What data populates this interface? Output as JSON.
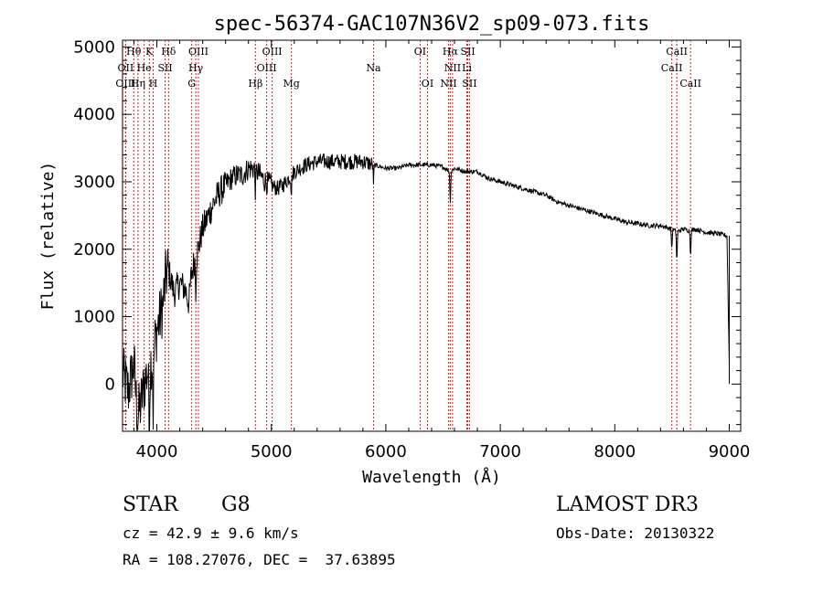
{
  "chart_data": {
    "type": "line",
    "title": "spec-56374-GAC107N36V2_sp09-073.fits",
    "xlabel": "Wavelength (Å)",
    "ylabel": "Flux (relative)",
    "xlim": [
      3700,
      9100
    ],
    "ylim": [
      -700,
      5100
    ],
    "xticks": [
      4000,
      5000,
      6000,
      7000,
      8000,
      9000
    ],
    "yticks": [
      0,
      1000,
      2000,
      3000,
      4000,
      5000
    ],
    "xtick_labels": [
      "4000",
      "5000",
      "6000",
      "7000",
      "8000",
      "9000"
    ],
    "ytick_labels": [
      "0",
      "1000",
      "2000",
      "3000",
      "4000",
      "5000"
    ],
    "grid": false,
    "series": [
      {
        "name": "flux",
        "x": [
          3700,
          3750,
          3800,
          3830,
          3860,
          3890,
          3920,
          3960,
          4000,
          4050,
          4080,
          4100,
          4150,
          4200,
          4250,
          4280,
          4300,
          4330,
          4360,
          4400,
          4450,
          4500,
          4550,
          4600,
          4650,
          4700,
          4750,
          4800,
          4850,
          4900,
          4950,
          5000,
          5050,
          5100,
          5200,
          5300,
          5400,
          5500,
          5600,
          5700,
          5800,
          5900,
          6000,
          6100,
          6200,
          6300,
          6400,
          6500,
          6563,
          6600,
          6700,
          6800,
          6900,
          7000,
          7100,
          7200,
          7300,
          7400,
          7500,
          7600,
          7700,
          7800,
          7900,
          8000,
          8100,
          8200,
          8300,
          8400,
          8498,
          8542,
          8600,
          8662,
          8700,
          8800,
          8900,
          8980,
          9000
        ],
        "y": [
          150,
          -100,
          300,
          -500,
          -300,
          0,
          200,
          400,
          800,
          1150,
          1600,
          1700,
          1350,
          1500,
          1400,
          1200,
          1600,
          1850,
          2000,
          2300,
          2500,
          2700,
          2850,
          2950,
          3050,
          3100,
          3100,
          3200,
          3200,
          3100,
          3000,
          2950,
          2900,
          2950,
          3150,
          3250,
          3300,
          3300,
          3300,
          3300,
          3300,
          3250,
          3200,
          3200,
          3250,
          3250,
          3250,
          3220,
          3150,
          3200,
          3150,
          3150,
          3050,
          3000,
          2950,
          2900,
          2850,
          2800,
          2700,
          2650,
          2600,
          2550,
          2500,
          2450,
          2400,
          2380,
          2350,
          2350,
          2300,
          2260,
          2300,
          2270,
          2300,
          2250,
          2230,
          2200,
          300
        ]
      }
    ],
    "lines": [
      {
        "name": "Hθ",
        "x": 3798,
        "row": 1,
        "tier": "top"
      },
      {
        "name": "K",
        "x": 3934,
        "row": 1,
        "tier": "top"
      },
      {
        "name": "Hδ",
        "x": 4102,
        "row": 1,
        "tier": "top"
      },
      {
        "name": "OIII",
        "x": 4363,
        "row": 1,
        "tier": "top"
      },
      {
        "name": "OIII",
        "x": 5007,
        "row": 1,
        "tier": "top"
      },
      {
        "name": "OI",
        "x": 6300,
        "row": 1,
        "tier": "top"
      },
      {
        "name": "Hα",
        "x": 6563,
        "row": 1,
        "tier": "top"
      },
      {
        "name": "SII",
        "x": 6716,
        "row": 1,
        "tier": "top"
      },
      {
        "name": "CaII",
        "x": 8542,
        "row": 1,
        "tier": "top"
      },
      {
        "name": "OII",
        "x": 3727,
        "row": 2,
        "tier": "top"
      },
      {
        "name": "He",
        "x": 3889,
        "row": 2,
        "tier": "top"
      },
      {
        "name": "SII",
        "x": 4072,
        "row": 2,
        "tier": "top"
      },
      {
        "name": "Hγ",
        "x": 4340,
        "row": 2,
        "tier": "top"
      },
      {
        "name": "OIII",
        "x": 4959,
        "row": 2,
        "tier": "top"
      },
      {
        "name": "Na",
        "x": 5893,
        "row": 2,
        "tier": "top"
      },
      {
        "name": "NII",
        "x": 6583,
        "row": 2,
        "tier": "top"
      },
      {
        "name": "Li",
        "x": 6708,
        "row": 2,
        "tier": "top"
      },
      {
        "name": "CaII",
        "x": 8498,
        "row": 2,
        "tier": "top"
      },
      {
        "name": "OIII",
        "x": 3727,
        "row": 3,
        "tier": "top"
      },
      {
        "name": "Hη",
        "x": 3835,
        "row": 3,
        "tier": "top"
      },
      {
        "name": "H",
        "x": 3968,
        "row": 3,
        "tier": "top"
      },
      {
        "name": "G",
        "x": 4304,
        "row": 3,
        "tier": "top"
      },
      {
        "name": "Hβ",
        "x": 4861,
        "row": 3,
        "tier": "top"
      },
      {
        "name": "Mg",
        "x": 5175,
        "row": 3,
        "tier": "top"
      },
      {
        "name": "OI",
        "x": 6364,
        "row": 3,
        "tier": "top"
      },
      {
        "name": "NII",
        "x": 6548,
        "row": 3,
        "tier": "top"
      },
      {
        "name": "SII",
        "x": 6731,
        "row": 3,
        "tier": "top"
      },
      {
        "name": "CaII",
        "x": 8662,
        "row": 3,
        "tier": "top"
      }
    ]
  },
  "info": {
    "object_class": "STAR",
    "subclass": "G8",
    "survey": "LAMOST DR3",
    "redshift_line": "cz = 42.9 ± 9.6 km/s",
    "obs_date_line": "Obs-Date: 20130322",
    "coords_line": "RA = 108.27076, DEC =  37.63895"
  },
  "colors": {
    "spectrum": "#000000",
    "marker_lines": "#cc2222",
    "axes": "#000000"
  }
}
